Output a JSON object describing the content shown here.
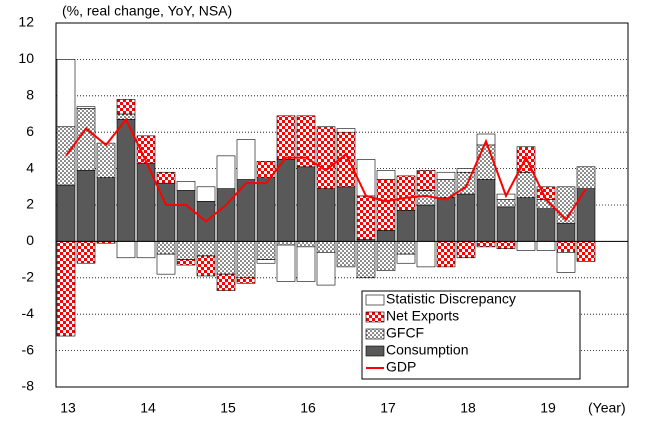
{
  "chart_data": {
    "type": "stacked_bar_line",
    "y_axis_label": "(%, real change, YoY, NSA)",
    "x_axis_label": "(Year)",
    "categories": [
      "13",
      null,
      null,
      null,
      "14",
      null,
      null,
      null,
      "15",
      null,
      null,
      null,
      "16",
      null,
      null,
      null,
      "17",
      null,
      null,
      null,
      "18",
      null,
      null,
      null,
      "19",
      null,
      null
    ],
    "series": [
      {
        "name": "Statistic Discrepancy",
        "color": "#ffffff",
        "kind": "bar",
        "values": [
          3.7,
          0.1,
          0,
          -0.9,
          -0.9,
          -1.1,
          0.5,
          0.8,
          1.8,
          2.2,
          -0.2,
          -2.0,
          -1.9,
          -1.8,
          0.2,
          2.0,
          0.5,
          -0.5,
          -1.4,
          0.4,
          0.2,
          0.6,
          0.3,
          -0.5,
          -0.5,
          -1.1,
          0
        ]
      },
      {
        "name": "Net Exports",
        "color": "#ff0000",
        "kind": "bar",
        "values": [
          -5.2,
          -1.2,
          -0.1,
          0.8,
          1.5,
          0.6,
          -0.3,
          -1.1,
          -0.9,
          -0.3,
          0.9,
          2.4,
          2.8,
          3.4,
          3.0,
          2.4,
          2.8,
          1.9,
          1.1,
          -1.4,
          -0.9,
          -0.3,
          -0.4,
          1.4,
          0.7,
          -0.6,
          -1.1
        ]
      },
      {
        "name": "GFCF",
        "color": "#000000",
        "kind": "bar",
        "values": [
          3.2,
          3.4,
          1.9,
          0.3,
          0,
          -0.7,
          -1.0,
          -0.8,
          -1.8,
          -2.0,
          -1.0,
          -0.2,
          -0.3,
          -0.6,
          -1.4,
          -2.0,
          -1.6,
          -0.7,
          0.8,
          1.0,
          1.2,
          1.9,
          0.4,
          1.4,
          0.5,
          2.0,
          1.2
        ]
      },
      {
        "name": "Consumption",
        "color": "#595959",
        "kind": "bar",
        "values": [
          3.1,
          3.9,
          3.5,
          6.7,
          4.3,
          3.2,
          2.8,
          2.2,
          2.9,
          3.4,
          3.5,
          4.5,
          4.1,
          2.9,
          3.0,
          0.1,
          0.6,
          1.7,
          2.0,
          2.4,
          2.6,
          3.4,
          1.9,
          2.4,
          1.8,
          1.0,
          2.9
        ]
      },
      {
        "name": "GDP",
        "color": "#ff0000",
        "kind": "line",
        "values": [
          4.7,
          6.2,
          5.3,
          6.7,
          4.4,
          2.0,
          2.0,
          1.1,
          2.0,
          3.2,
          3.2,
          4.6,
          4.6,
          3.9,
          4.8,
          2.5,
          2.2,
          2.4,
          2.5,
          2.3,
          3.0,
          5.5,
          2.5,
          4.6,
          2.3,
          1.2,
          2.9
        ]
      }
    ],
    "ylim": [
      -8,
      12
    ],
    "yticks": [
      -8,
      -6,
      -4,
      -2,
      0,
      2,
      4,
      6,
      8,
      10,
      12
    ],
    "grid": true,
    "legend": "bottom-right"
  }
}
